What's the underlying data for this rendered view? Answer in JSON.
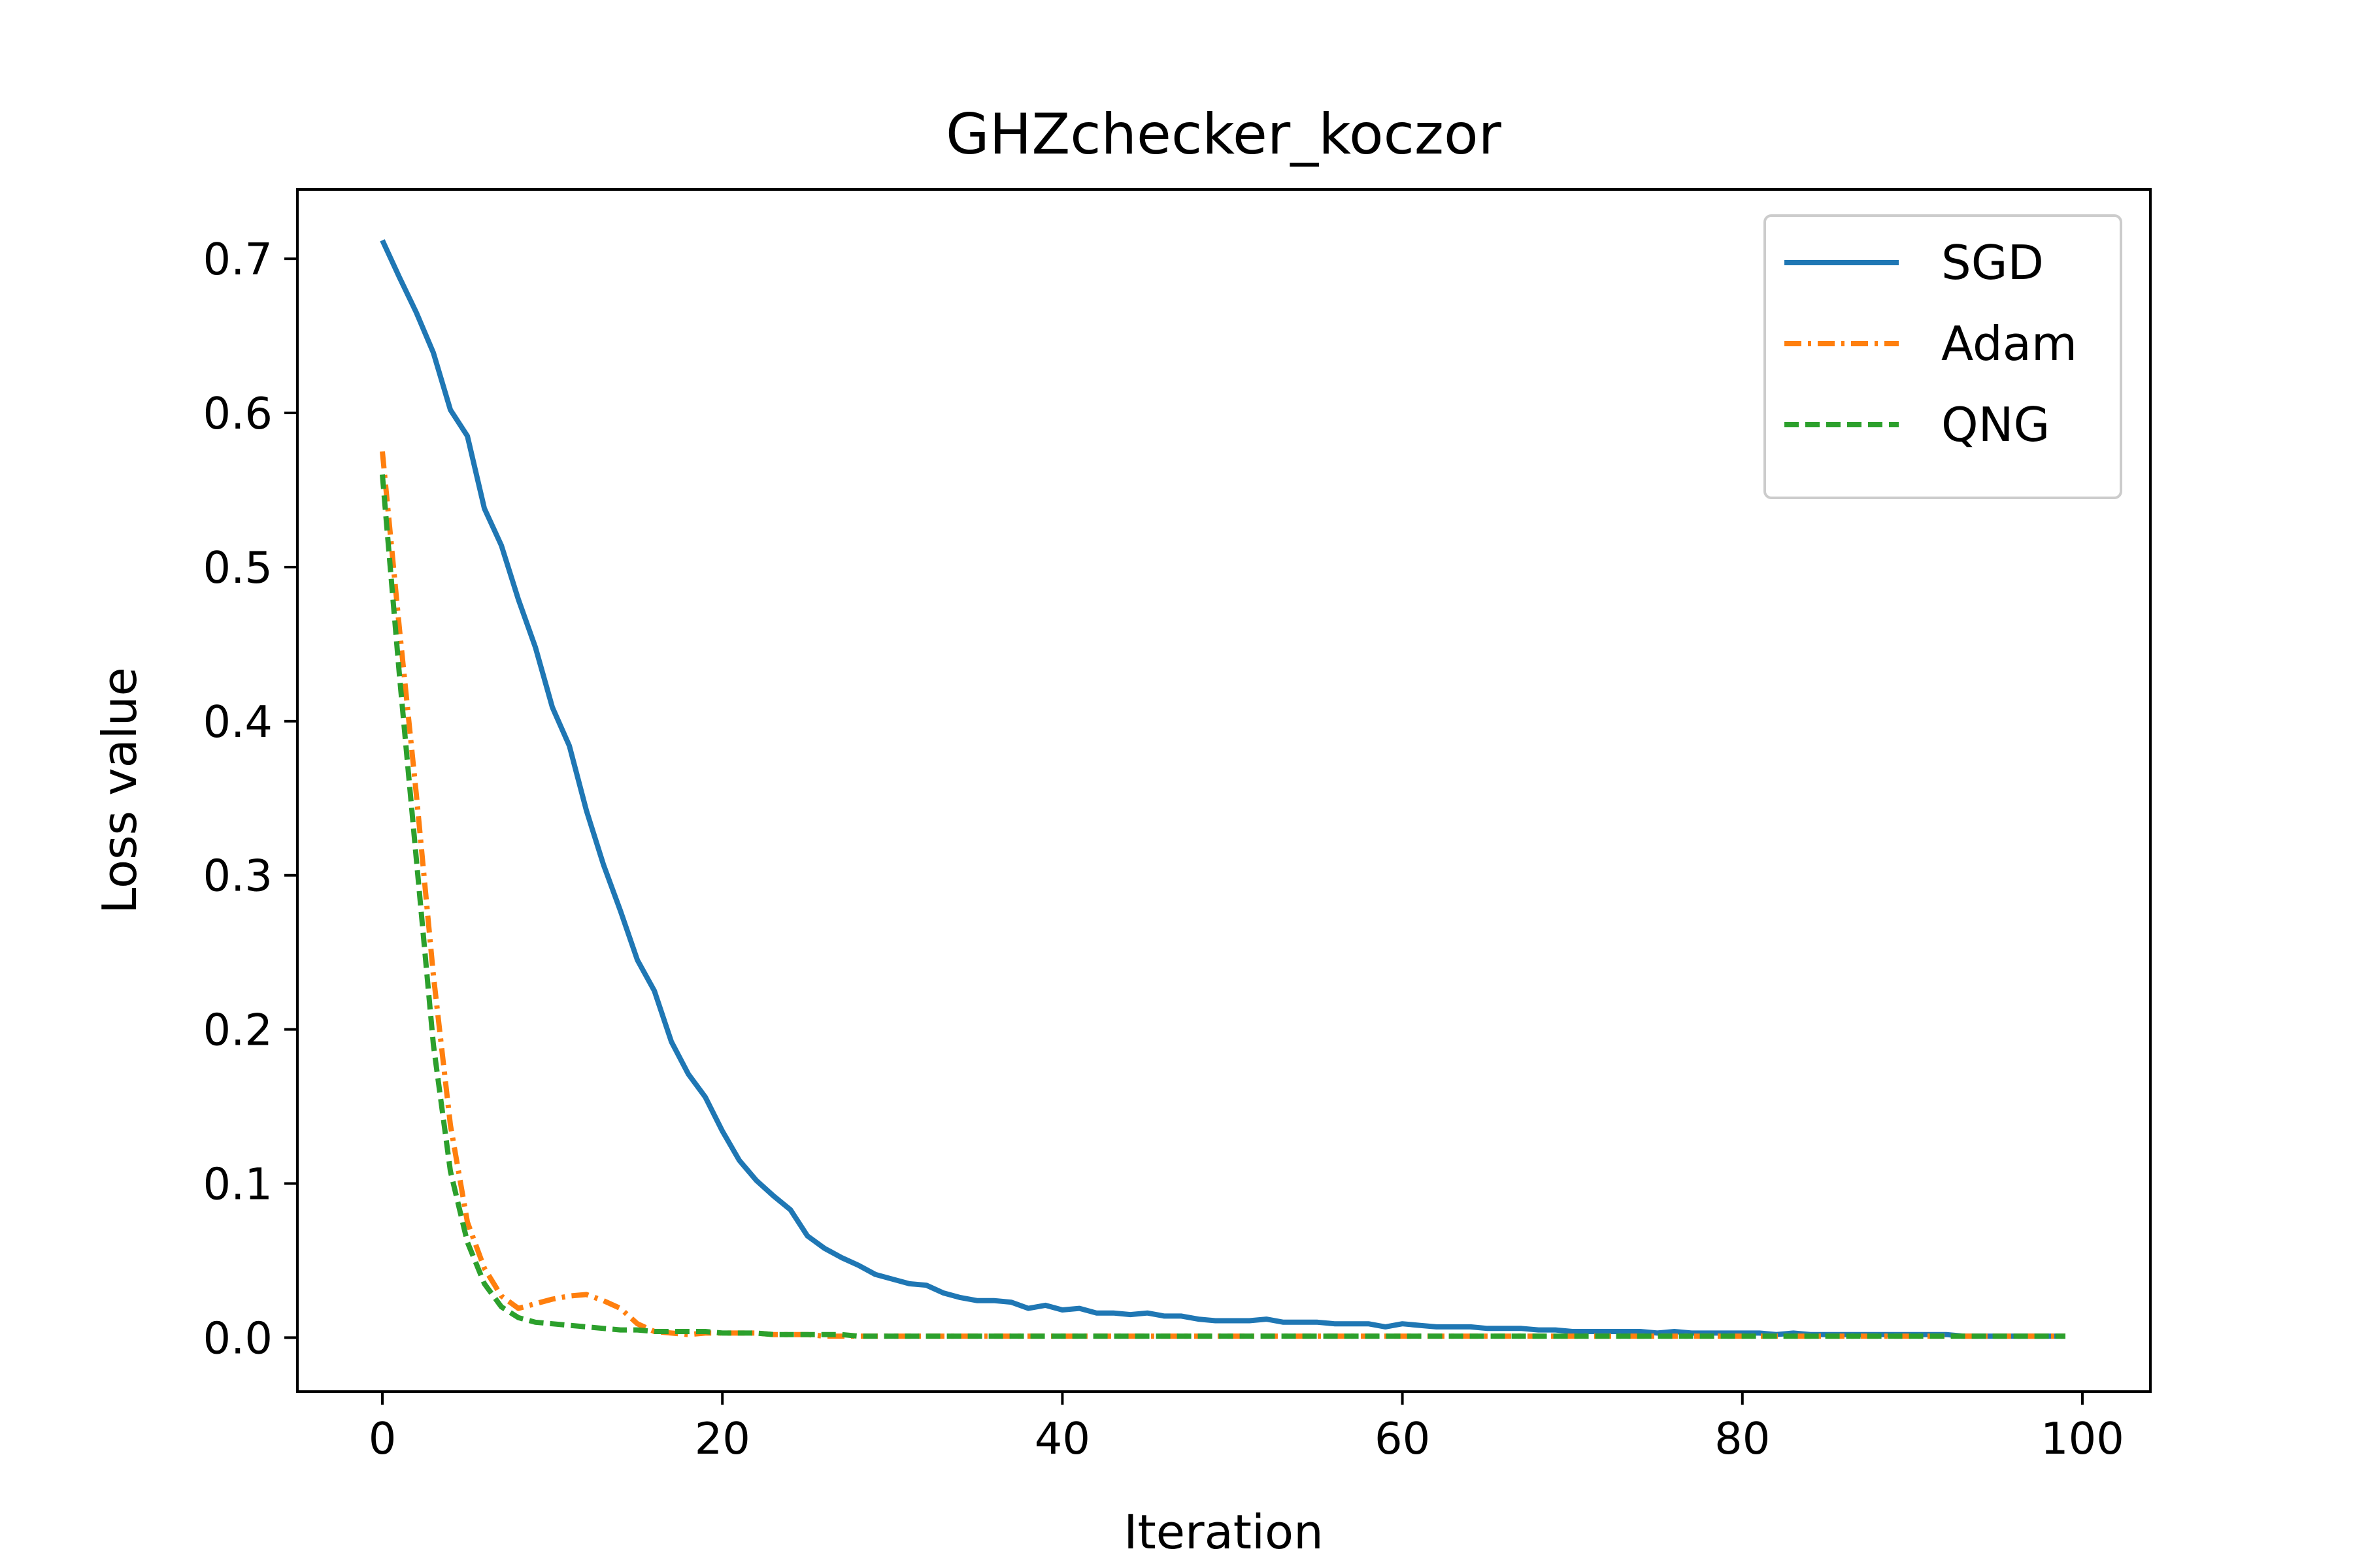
{
  "chart_data": {
    "type": "line",
    "title": "GHZchecker_koczor",
    "xlabel": "Iteration",
    "ylabel": "Loss value",
    "xlim": [
      -5,
      104
    ],
    "ylim": [
      -0.035,
      0.745
    ],
    "xticks": [
      0,
      20,
      40,
      60,
      80,
      100
    ],
    "yticks": [
      0.0,
      0.1,
      0.2,
      0.3,
      0.4,
      0.5,
      0.6,
      0.7
    ],
    "x_tick_labels": [
      "0",
      "20",
      "40",
      "60",
      "80",
      "100"
    ],
    "y_tick_labels": [
      "0.0",
      "0.1",
      "0.2",
      "0.3",
      "0.4",
      "0.5",
      "0.6",
      "0.7"
    ],
    "grid": false,
    "legend_position": "top-right",
    "series": [
      {
        "name": "SGD",
        "color": "#1f77b4",
        "style": "solid",
        "x_start": 0,
        "x_step": 1,
        "values": [
          0.712,
          0.688,
          0.665,
          0.639,
          0.602,
          0.585,
          0.538,
          0.514,
          0.479,
          0.448,
          0.409,
          0.384,
          0.342,
          0.307,
          0.277,
          0.245,
          0.225,
          0.192,
          0.171,
          0.156,
          0.134,
          0.115,
          0.102,
          0.092,
          0.083,
          0.066,
          0.058,
          0.052,
          0.047,
          0.041,
          0.038,
          0.035,
          0.034,
          0.029,
          0.026,
          0.024,
          0.024,
          0.023,
          0.019,
          0.021,
          0.018,
          0.019,
          0.016,
          0.016,
          0.015,
          0.016,
          0.014,
          0.014,
          0.012,
          0.011,
          0.011,
          0.011,
          0.012,
          0.01,
          0.01,
          0.01,
          0.009,
          0.009,
          0.009,
          0.007,
          0.009,
          0.008,
          0.007,
          0.007,
          0.007,
          0.006,
          0.006,
          0.006,
          0.005,
          0.005,
          0.004,
          0.004,
          0.004,
          0.004,
          0.004,
          0.003,
          0.004,
          0.003,
          0.003,
          0.003,
          0.003,
          0.003,
          0.002,
          0.003,
          0.002,
          0.002,
          0.002,
          0.002,
          0.002,
          0.002,
          0.002,
          0.002,
          0.002,
          0.001,
          0.001,
          0.001,
          0.001,
          0.001,
          0.001,
          0.001
        ]
      },
      {
        "name": "Adam",
        "color": "#ff7f0e",
        "style": "dashdot",
        "x_start": 0,
        "x_step": 1,
        "values": [
          0.575,
          0.46,
          0.352,
          0.235,
          0.138,
          0.075,
          0.045,
          0.027,
          0.019,
          0.022,
          0.025,
          0.027,
          0.028,
          0.024,
          0.019,
          0.009,
          0.004,
          0.003,
          0.002,
          0.003,
          0.003,
          0.003,
          0.003,
          0.002,
          0.002,
          0.002,
          0.001,
          0.001,
          0.001,
          0.001,
          0.001,
          0.001,
          0.001,
          0.001,
          0.001,
          0.001,
          0.001,
          0.001,
          0.001,
          0.001,
          0.001,
          0.001,
          0.001,
          0.001,
          0.001,
          0.001,
          0.001,
          0.001,
          0.001,
          0.001,
          0.001,
          0.001,
          0.001,
          0.001,
          0.001,
          0.001,
          0.001,
          0.001,
          0.001,
          0.001,
          0.001,
          0.001,
          0.001,
          0.001,
          0.001,
          0.001,
          0.001,
          0.001,
          0.001,
          0.001,
          0.001,
          0.001,
          0.001,
          0.001,
          0.001,
          0.001,
          0.001,
          0.001,
          0.001,
          0.001,
          0.001,
          0.001,
          0.001,
          0.001,
          0.001,
          0.001,
          0.001,
          0.001,
          0.001,
          0.001,
          0.001,
          0.001,
          0.001,
          0.001,
          0.001,
          0.001,
          0.001,
          0.001,
          0.001,
          0.001
        ]
      },
      {
        "name": "QNG",
        "color": "#2ca02c",
        "style": "dashed",
        "x_start": 0,
        "x_step": 1,
        "values": [
          0.56,
          0.43,
          0.31,
          0.19,
          0.108,
          0.062,
          0.035,
          0.02,
          0.013,
          0.01,
          0.009,
          0.008,
          0.007,
          0.006,
          0.005,
          0.005,
          0.004,
          0.004,
          0.004,
          0.004,
          0.003,
          0.003,
          0.003,
          0.002,
          0.002,
          0.002,
          0.002,
          0.002,
          0.001,
          0.001,
          0.001,
          0.001,
          0.001,
          0.001,
          0.001,
          0.001,
          0.001,
          0.001,
          0.001,
          0.001,
          0.001,
          0.001,
          0.001,
          0.001,
          0.001,
          0.001,
          0.001,
          0.001,
          0.001,
          0.001,
          0.001,
          0.001,
          0.001,
          0.001,
          0.001,
          0.001,
          0.001,
          0.001,
          0.001,
          0.001,
          0.001,
          0.001,
          0.001,
          0.001,
          0.001,
          0.001,
          0.001,
          0.001,
          0.001,
          0.001,
          0.001,
          0.001,
          0.001,
          0.001,
          0.001,
          0.001,
          0.001,
          0.001,
          0.001,
          0.001,
          0.001,
          0.001,
          0.001,
          0.001,
          0.001,
          0.001,
          0.001,
          0.001,
          0.001,
          0.001,
          0.001,
          0.001,
          0.001,
          0.001,
          0.001,
          0.001,
          0.001,
          0.001,
          0.001,
          0.001
        ]
      }
    ]
  }
}
